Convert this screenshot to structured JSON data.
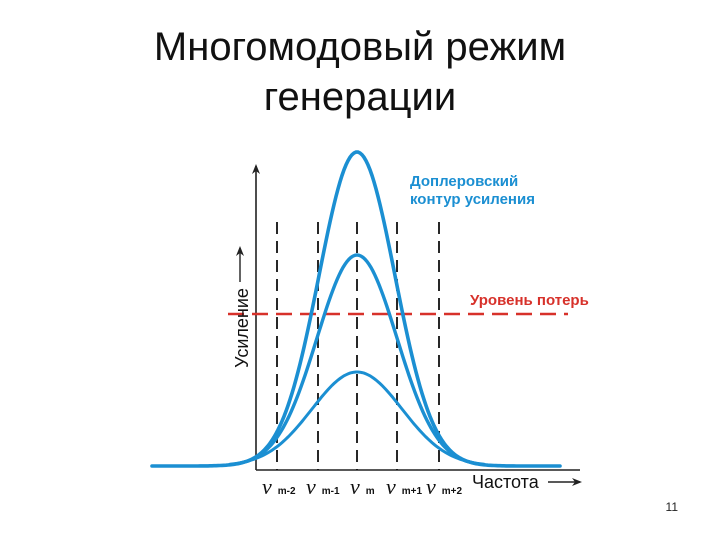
{
  "title": {
    "line1": "Многомодовый режим",
    "line2": "генерации"
  },
  "diagram": {
    "y_axis_label": "Усиление",
    "x_axis_label": "Частота",
    "doppler_label_line1": "Доплеровский",
    "doppler_label_line2": "контур усиления",
    "loss_level_label": "Уровень потерь",
    "mode_labels": [
      {
        "nu": "ν",
        "sub": "m-2"
      },
      {
        "nu": "ν",
        "sub": "m-1"
      },
      {
        "nu": "ν",
        "sub": "m"
      },
      {
        "nu": "ν",
        "sub": "m+1"
      },
      {
        "nu": "ν",
        "sub": "m+2"
      }
    ],
    "colors": {
      "curve": "#1b8fd2",
      "doppler_label": "#1b8fd2",
      "loss_line": "#d7312a",
      "axis": "#222222",
      "dashed": "#111111"
    }
  },
  "page_number": "11"
}
